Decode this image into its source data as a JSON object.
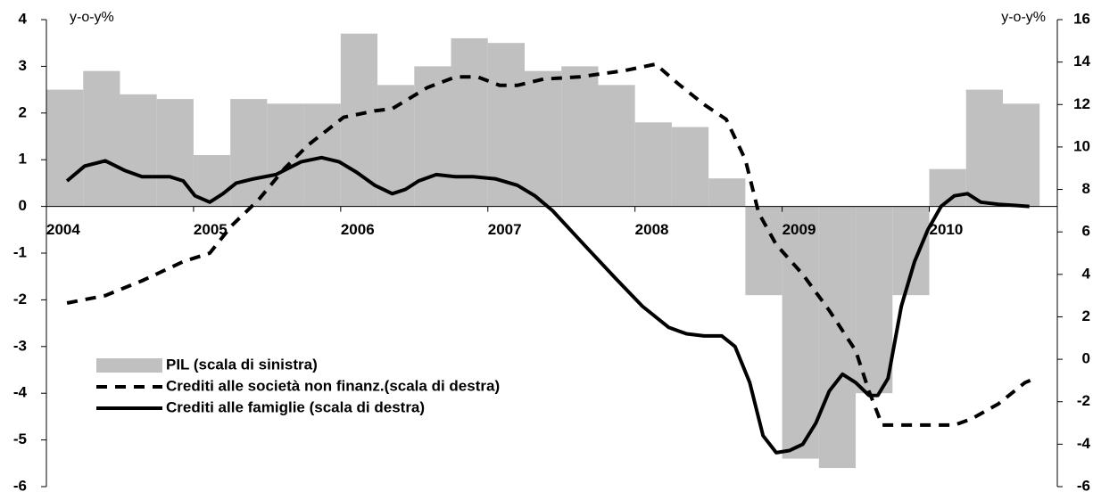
{
  "chart_data": {
    "type": "combo",
    "y_label": "y-o-y%",
    "y2_label": "y-o-y%",
    "xlim": [
      2004,
      2010.87
    ],
    "xticks": [
      2004,
      2005,
      2006,
      2007,
      2008,
      2009,
      2010
    ],
    "ylim": [
      -6,
      4
    ],
    "yticks": [
      4,
      3,
      2,
      1,
      0,
      -1,
      -2,
      -3,
      -4,
      -5,
      -6
    ],
    "y2lim": [
      -6,
      16
    ],
    "y2ticks": [
      16,
      14,
      12,
      10,
      8,
      6,
      4,
      2,
      0,
      -2,
      -4,
      -6
    ],
    "series": [
      {
        "name": "PIL (scala di sinistra)",
        "type": "bar",
        "axis": "y",
        "color": "#c0c0c0",
        "x": [
          2004.125,
          2004.375,
          2004.625,
          2004.875,
          2005.125,
          2005.375,
          2005.625,
          2005.875,
          2006.125,
          2006.375,
          2006.625,
          2006.875,
          2007.125,
          2007.375,
          2007.625,
          2007.875,
          2008.125,
          2008.375,
          2008.625,
          2008.875,
          2009.125,
          2009.375,
          2009.625,
          2009.875,
          2010.125,
          2010.375,
          2010.625
        ],
        "values": [
          2.5,
          2.9,
          2.4,
          2.3,
          1.1,
          2.3,
          2.2,
          2.2,
          3.7,
          2.6,
          3.0,
          3.6,
          3.5,
          2.9,
          3.0,
          2.6,
          1.8,
          1.7,
          0.6,
          -1.9,
          -5.4,
          -5.6,
          -4.0,
          -1.9,
          0.8,
          2.5,
          2.2
        ]
      },
      {
        "name": "Crediti alle società non finanz.(scala di destra)",
        "type": "line",
        "axis": "y2",
        "color": "#000000",
        "style": "dashed",
        "x": [
          2004.14,
          2004.4,
          2004.65,
          2004.93,
          2005.11,
          2005.26,
          2005.44,
          2005.62,
          2005.78,
          2006.02,
          2006.23,
          2006.35,
          2006.59,
          2006.78,
          2006.93,
          2007.08,
          2007.2,
          2007.38,
          2007.62,
          2007.93,
          2008.14,
          2008.29,
          2008.47,
          2008.62,
          2008.75,
          2008.84,
          2008.96,
          2009.14,
          2009.32,
          2009.5,
          2009.59,
          2009.68,
          2009.81,
          2009.99,
          2010.17,
          2010.29,
          2010.47,
          2010.65,
          2010.72
        ],
        "values": [
          2.65,
          3.0,
          3.7,
          4.6,
          5.0,
          6.3,
          7.5,
          9.0,
          10.1,
          11.4,
          11.7,
          11.8,
          12.8,
          13.3,
          13.3,
          12.9,
          12.9,
          13.2,
          13.3,
          13.6,
          13.9,
          13.0,
          12.0,
          11.3,
          9.4,
          6.9,
          5.4,
          4.0,
          2.3,
          0.4,
          -1.5,
          -3.1,
          -3.1,
          -3.1,
          -3.1,
          -2.8,
          -2.1,
          -1.1,
          -0.9
        ]
      },
      {
        "name": "Crediti alle famiglie (scala di destra)",
        "type": "line",
        "axis": "y2",
        "color": "#000000",
        "style": "solid",
        "x": [
          2004.14,
          2004.26,
          2004.4,
          2004.53,
          2004.65,
          2004.84,
          2004.93,
          2005.01,
          2005.11,
          2005.2,
          2005.29,
          2005.41,
          2005.56,
          2005.73,
          2005.87,
          2005.99,
          2006.11,
          2006.23,
          2006.35,
          2006.44,
          2006.53,
          2006.65,
          2006.78,
          2006.9,
          2007.05,
          2007.2,
          2007.32,
          2007.44,
          2007.56,
          2007.68,
          2007.87,
          2008.05,
          2008.23,
          2008.35,
          2008.47,
          2008.59,
          2008.68,
          2008.78,
          2008.87,
          2008.96,
          2009.05,
          2009.14,
          2009.23,
          2009.32,
          2009.41,
          2009.5,
          2009.59,
          2009.65,
          2009.72,
          2009.81,
          2009.9,
          2009.99,
          2010.08,
          2010.17,
          2010.26,
          2010.35,
          2010.47,
          2010.68
        ],
        "values": [
          8.4,
          9.1,
          9.35,
          8.9,
          8.6,
          8.6,
          8.4,
          7.7,
          7.4,
          7.8,
          8.3,
          8.5,
          8.7,
          9.3,
          9.5,
          9.3,
          8.8,
          8.2,
          7.8,
          8.0,
          8.4,
          8.7,
          8.6,
          8.6,
          8.5,
          8.2,
          7.7,
          7.0,
          6.1,
          5.2,
          3.8,
          2.5,
          1.5,
          1.2,
          1.1,
          1.1,
          0.6,
          -1.1,
          -3.6,
          -4.4,
          -4.3,
          -4.0,
          -3.0,
          -1.5,
          -0.7,
          -1.1,
          -1.7,
          -1.7,
          -0.9,
          2.5,
          4.6,
          6.1,
          7.2,
          7.7,
          7.8,
          7.4,
          7.3,
          7.2
        ]
      }
    ]
  }
}
